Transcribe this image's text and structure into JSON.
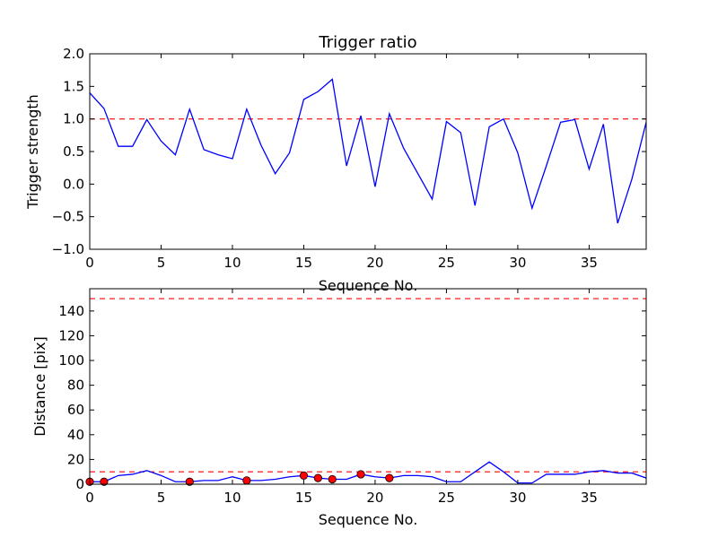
{
  "chart_data": [
    {
      "type": "line",
      "title": "Trigger ratio",
      "xlabel": "Sequence No.",
      "ylabel": "Trigger strength",
      "xlim": [
        0,
        39
      ],
      "ylim": [
        -1.0,
        2.0
      ],
      "xticks": [
        0,
        5,
        10,
        15,
        20,
        25,
        30,
        35
      ],
      "xtick_labels": [
        "0",
        "5",
        "10",
        "15",
        "20",
        "25",
        "30",
        "35"
      ],
      "yticks": [
        -1.0,
        -0.5,
        0.0,
        0.5,
        1.0,
        1.5,
        2.0
      ],
      "ytick_labels": [
        "−1.0",
        "−0.5",
        "0.0",
        "0.5",
        "1.0",
        "1.5",
        "2.0"
      ],
      "grid": false,
      "x": [
        0,
        1,
        2,
        3,
        4,
        5,
        6,
        7,
        8,
        9,
        10,
        11,
        12,
        13,
        14,
        15,
        16,
        17,
        18,
        19,
        20,
        21,
        22,
        23,
        24,
        25,
        26,
        27,
        28,
        29,
        30,
        31,
        32,
        33,
        34,
        35,
        36,
        37,
        38,
        39
      ],
      "series": [
        {
          "color": "#0000ff",
          "values": [
            1.4,
            1.16,
            0.58,
            0.58,
            0.99,
            0.66,
            0.45,
            1.15,
            0.53,
            0.45,
            0.39,
            1.15,
            0.6,
            0.16,
            0.48,
            1.3,
            1.42,
            1.61,
            0.28,
            1.05,
            -0.04,
            1.08,
            0.55,
            0.16,
            -0.23,
            0.96,
            0.79,
            -0.33,
            0.88,
            1.0,
            0.48,
            -0.37,
            0.28,
            0.95,
            0.99,
            0.23,
            0.92,
            -0.6,
            0.08,
            0.95
          ]
        }
      ],
      "reference_lines": [
        {
          "y": 1.0,
          "color": "#ff0000",
          "style": "dashed"
        }
      ]
    },
    {
      "type": "line",
      "xlabel": "Sequence No.",
      "ylabel": "Distance [pix]",
      "xlim": [
        0,
        39
      ],
      "ylim": [
        0,
        158
      ],
      "xticks": [
        0,
        5,
        10,
        15,
        20,
        25,
        30,
        35
      ],
      "xtick_labels": [
        "0",
        "5",
        "10",
        "15",
        "20",
        "25",
        "30",
        "35"
      ],
      "yticks": [
        0,
        20,
        40,
        60,
        80,
        100,
        120,
        140
      ],
      "ytick_labels": [
        "0",
        "20",
        "40",
        "60",
        "80",
        "100",
        "120",
        "140"
      ],
      "grid": false,
      "x": [
        0,
        1,
        2,
        3,
        4,
        5,
        6,
        7,
        8,
        9,
        10,
        11,
        12,
        13,
        14,
        15,
        16,
        17,
        18,
        19,
        20,
        21,
        22,
        23,
        24,
        25,
        26,
        27,
        28,
        29,
        30,
        31,
        32,
        33,
        34,
        35,
        36,
        37,
        38,
        39
      ],
      "series": [
        {
          "color": "#0000ff",
          "values": [
            2,
            2,
            7,
            8,
            11,
            7,
            2,
            2,
            3,
            3,
            6,
            3,
            3,
            4,
            6,
            7,
            5,
            4,
            4,
            8,
            6,
            5,
            7,
            7,
            6,
            2,
            2,
            10,
            18,
            10,
            1,
            1,
            8,
            8,
            8,
            10,
            11,
            9,
            9,
            5
          ]
        }
      ],
      "markers": {
        "color": "#ff0000",
        "x": [
          0,
          1,
          7,
          11,
          15,
          16,
          17,
          19,
          21
        ],
        "y": [
          2,
          2,
          2,
          3,
          7,
          5,
          4,
          8,
          5
        ]
      },
      "reference_lines": [
        {
          "y": 150,
          "color": "#ff0000",
          "style": "dashed"
        },
        {
          "y": 10,
          "color": "#ff0000",
          "style": "dashed"
        }
      ]
    }
  ]
}
